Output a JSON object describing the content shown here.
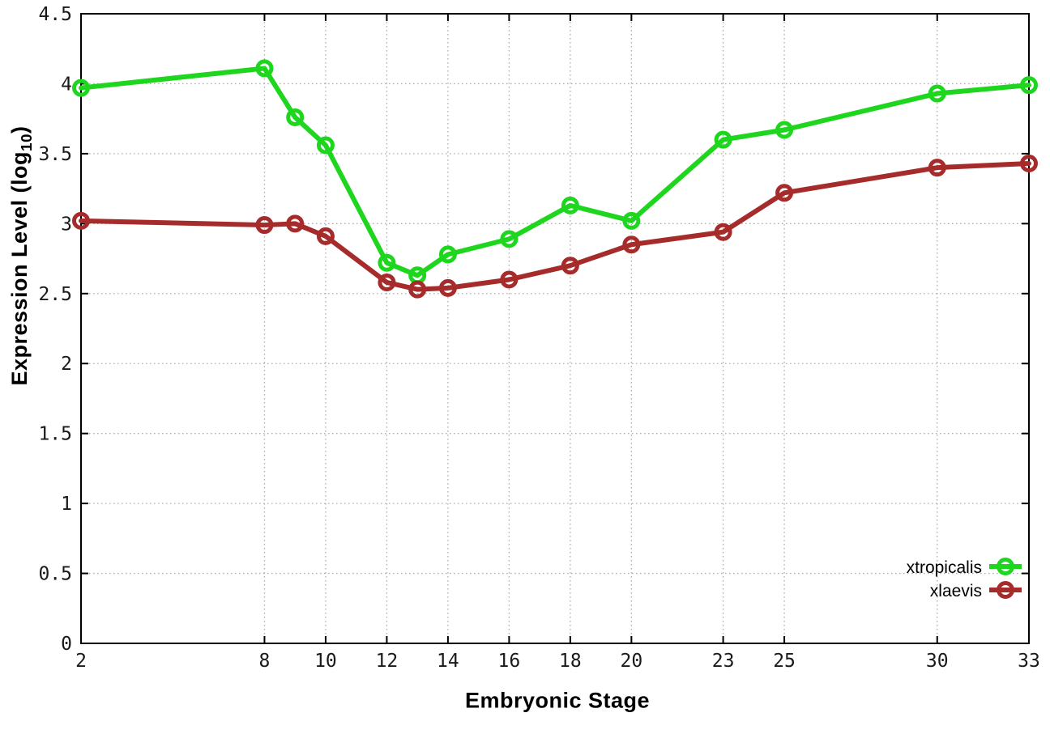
{
  "chart_data": {
    "type": "line",
    "title": "",
    "xlabel": "Embryonic Stage",
    "ylabel": "Expression Level (log10)",
    "ylabel_parts": {
      "main": "Expression Level (log",
      "sub": "10",
      "close": ")"
    },
    "xlim": [
      2,
      33
    ],
    "ylim": [
      0,
      4.5
    ],
    "x_ticks": [
      2,
      8,
      10,
      12,
      14,
      16,
      18,
      20,
      23,
      25,
      30,
      33
    ],
    "x_tick_labels": [
      "2",
      "8",
      "10",
      "12",
      "14",
      "16",
      "18",
      "20",
      "23",
      "25",
      "30",
      "33"
    ],
    "y_ticks": [
      0,
      0.5,
      1,
      1.5,
      2,
      2.5,
      3,
      3.5,
      4,
      4.5
    ],
    "y_tick_labels": [
      "0",
      "0.5",
      "1",
      "1.5",
      "2",
      "2.5",
      "3",
      "3.5",
      "4",
      "4.5"
    ],
    "grid": true,
    "legend_position": "inside-bottom-right",
    "x": [
      2,
      8,
      9,
      10,
      12,
      13,
      14,
      16,
      18,
      20,
      23,
      25,
      30,
      33
    ],
    "series": [
      {
        "name": "xtropicalis",
        "color": "#1fd61f",
        "marker": "open-circle",
        "values": [
          3.97,
          4.11,
          3.76,
          3.56,
          2.72,
          2.63,
          2.78,
          2.89,
          3.13,
          3.02,
          3.6,
          3.67,
          3.93,
          3.99
        ]
      },
      {
        "name": "xlaevis",
        "color": "#a62b2b",
        "marker": "open-circle",
        "values": [
          3.02,
          2.99,
          3.0,
          2.91,
          2.58,
          2.53,
          2.54,
          2.6,
          2.7,
          2.85,
          2.94,
          3.22,
          3.4,
          3.43
        ]
      }
    ],
    "styles": {
      "border_color": "#000000",
      "grid_color": "#b0b0b0",
      "tick_label_color": "#1a1a1a",
      "axis_label_color": "#000000",
      "background": "#ffffff"
    }
  }
}
